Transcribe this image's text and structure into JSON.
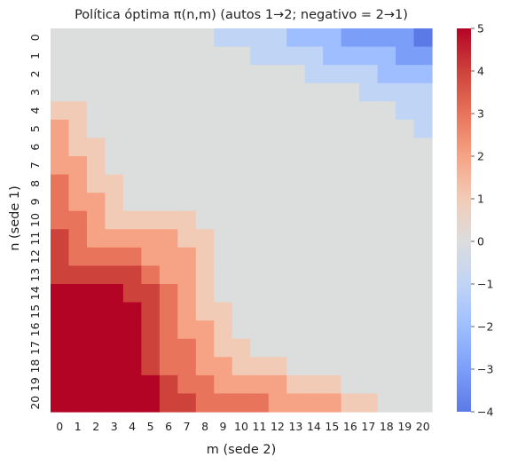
{
  "chart_data": {
    "type": "heatmap",
    "title": "Política óptima π(n,m)  (autos 1→2; negativo = 2→1)",
    "xlabel": "m (sede 2)",
    "ylabel": "n (sede 1)",
    "x_ticks": [
      "0",
      "1",
      "2",
      "3",
      "4",
      "5",
      "6",
      "7",
      "8",
      "9",
      "10",
      "11",
      "12",
      "13",
      "14",
      "15",
      "16",
      "17",
      "18",
      "19",
      "20"
    ],
    "y_ticks": [
      "0",
      "1",
      "2",
      "3",
      "4",
      "5",
      "6",
      "7",
      "8",
      "9",
      "10",
      "11",
      "12",
      "13",
      "14",
      "15",
      "16",
      "17",
      "18",
      "19",
      "20"
    ],
    "colorbar": {
      "min": -4,
      "max": 5,
      "ticks": [
        "-4",
        "-3",
        "-2",
        "-1",
        "0",
        "1",
        "2",
        "3",
        "4",
        "5"
      ],
      "colormap": "coolwarm",
      "colors": {
        "-4": "#5b7ae6",
        "-3": "#7b9ff9",
        "-2": "#9ebeff",
        "-1": "#c0d4f5",
        "0": "#dcdddd",
        "1": "#f2cbb7",
        "2": "#f6a385",
        "3": "#e7745b",
        "4": "#cd423b",
        "5": "#b40426"
      }
    },
    "values": [
      [
        0,
        0,
        0,
        0,
        0,
        0,
        0,
        0,
        0,
        -1,
        -1,
        -1,
        -1,
        -2,
        -2,
        -2,
        -3,
        -3,
        -3,
        -3,
        -4
      ],
      [
        0,
        0,
        0,
        0,
        0,
        0,
        0,
        0,
        0,
        0,
        0,
        -1,
        -1,
        -1,
        -1,
        -2,
        -2,
        -2,
        -2,
        -3,
        -3
      ],
      [
        0,
        0,
        0,
        0,
        0,
        0,
        0,
        0,
        0,
        0,
        0,
        0,
        0,
        0,
        -1,
        -1,
        -1,
        -1,
        -2,
        -2,
        -2
      ],
      [
        0,
        0,
        0,
        0,
        0,
        0,
        0,
        0,
        0,
        0,
        0,
        0,
        0,
        0,
        0,
        0,
        0,
        -1,
        -1,
        -1,
        -1
      ],
      [
        1,
        1,
        0,
        0,
        0,
        0,
        0,
        0,
        0,
        0,
        0,
        0,
        0,
        0,
        0,
        0,
        0,
        0,
        0,
        -1,
        -1
      ],
      [
        2,
        1,
        0,
        0,
        0,
        0,
        0,
        0,
        0,
        0,
        0,
        0,
        0,
        0,
        0,
        0,
        0,
        0,
        0,
        0,
        -1
      ],
      [
        2,
        1,
        1,
        0,
        0,
        0,
        0,
        0,
        0,
        0,
        0,
        0,
        0,
        0,
        0,
        0,
        0,
        0,
        0,
        0,
        0
      ],
      [
        2,
        2,
        1,
        0,
        0,
        0,
        0,
        0,
        0,
        0,
        0,
        0,
        0,
        0,
        0,
        0,
        0,
        0,
        0,
        0,
        0
      ],
      [
        3,
        2,
        1,
        1,
        0,
        0,
        0,
        0,
        0,
        0,
        0,
        0,
        0,
        0,
        0,
        0,
        0,
        0,
        0,
        0,
        0
      ],
      [
        3,
        2,
        2,
        1,
        0,
        0,
        0,
        0,
        0,
        0,
        0,
        0,
        0,
        0,
        0,
        0,
        0,
        0,
        0,
        0,
        0
      ],
      [
        3,
        3,
        2,
        1,
        1,
        1,
        1,
        1,
        0,
        0,
        0,
        0,
        0,
        0,
        0,
        0,
        0,
        0,
        0,
        0,
        0
      ],
      [
        4,
        3,
        2,
        2,
        2,
        2,
        2,
        1,
        1,
        0,
        0,
        0,
        0,
        0,
        0,
        0,
        0,
        0,
        0,
        0,
        0
      ],
      [
        4,
        3,
        3,
        3,
        3,
        2,
        2,
        2,
        1,
        0,
        0,
        0,
        0,
        0,
        0,
        0,
        0,
        0,
        0,
        0,
        0
      ],
      [
        4,
        4,
        4,
        4,
        4,
        3,
        2,
        2,
        1,
        0,
        0,
        0,
        0,
        0,
        0,
        0,
        0,
        0,
        0,
        0,
        0
      ],
      [
        5,
        5,
        5,
        5,
        4,
        4,
        3,
        2,
        1,
        0,
        0,
        0,
        0,
        0,
        0,
        0,
        0,
        0,
        0,
        0,
        0
      ],
      [
        5,
        5,
        5,
        5,
        5,
        4,
        3,
        2,
        1,
        1,
        0,
        0,
        0,
        0,
        0,
        0,
        0,
        0,
        0,
        0,
        0
      ],
      [
        5,
        5,
        5,
        5,
        5,
        4,
        3,
        2,
        2,
        1,
        0,
        0,
        0,
        0,
        0,
        0,
        0,
        0,
        0,
        0,
        0
      ],
      [
        5,
        5,
        5,
        5,
        5,
        4,
        3,
        3,
        2,
        1,
        1,
        0,
        0,
        0,
        0,
        0,
        0,
        0,
        0,
        0,
        0
      ],
      [
        5,
        5,
        5,
        5,
        5,
        4,
        3,
        3,
        2,
        2,
        1,
        1,
        1,
        0,
        0,
        0,
        0,
        0,
        0,
        0,
        0
      ],
      [
        5,
        5,
        5,
        5,
        5,
        5,
        4,
        3,
        3,
        2,
        2,
        2,
        2,
        1,
        1,
        1,
        0,
        0,
        0,
        0,
        0
      ],
      [
        5,
        5,
        5,
        5,
        5,
        5,
        4,
        4,
        3,
        3,
        3,
        3,
        2,
        2,
        2,
        2,
        1,
        1,
        0,
        0,
        0
      ]
    ]
  }
}
